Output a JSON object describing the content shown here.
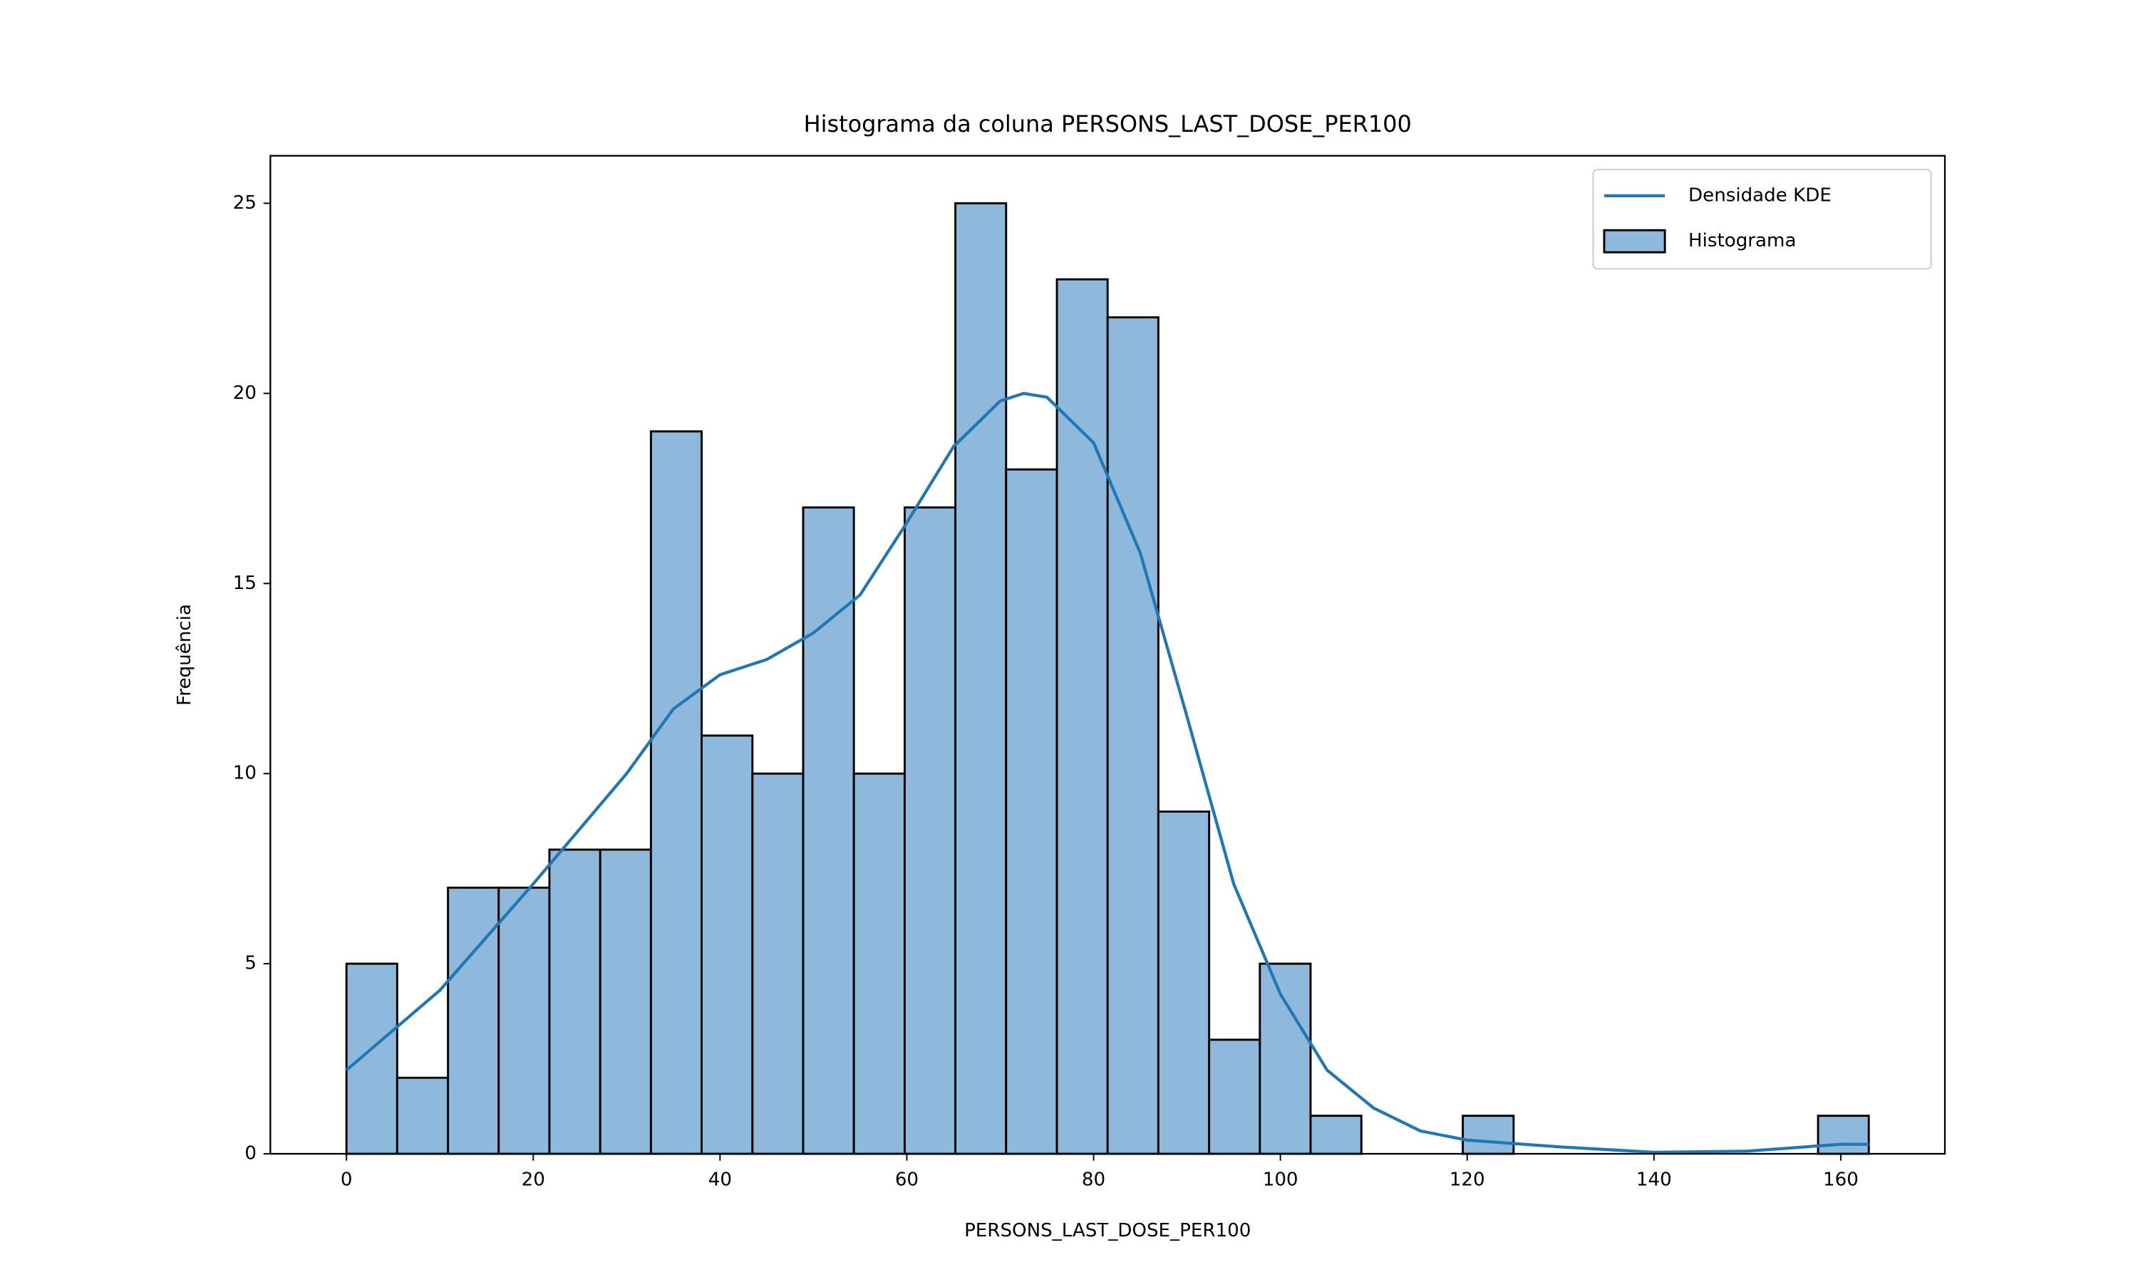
{
  "chart_data": {
    "type": "histogram",
    "title": "Histograma da coluna PERSONS_LAST_DOSE_PER100",
    "x_label": "PERSONS_LAST_DOSE_PER100",
    "y_label": "Frequência",
    "hist_name": "Histograma",
    "hist_color": "#8fb9dc",
    "edge_color": "#000000",
    "bins": [
      0,
      5.43,
      10.87,
      16.3,
      21.73,
      27.17,
      32.6,
      38.03,
      43.47,
      48.9,
      54.33,
      59.77,
      65.2,
      70.63,
      76.07,
      81.5,
      86.93,
      92.37,
      97.8,
      103.23,
      108.67,
      114.1,
      119.53,
      124.97,
      130.4,
      135.83,
      141.27,
      146.7,
      152.13,
      157.57,
      163
    ],
    "counts": [
      5,
      2,
      7,
      7,
      8,
      8,
      19,
      11,
      10,
      17,
      10,
      17,
      25,
      18,
      23,
      22,
      9,
      3,
      5,
      1,
      0,
      0,
      1,
      0,
      0,
      0,
      0,
      0,
      0,
      1
    ],
    "kde": {
      "name": "Densidade KDE",
      "color": "#1f77b4",
      "x": [
        0,
        10,
        20,
        30,
        35,
        40,
        45,
        50,
        55,
        60,
        65,
        70,
        72.5,
        75,
        80,
        85,
        90,
        95,
        100,
        105,
        110,
        115,
        120,
        130,
        140,
        150,
        160,
        163
      ],
      "values": [
        2.2,
        4.3,
        7.1,
        10.0,
        11.7,
        12.6,
        13.0,
        13.7,
        14.7,
        16.6,
        18.6,
        19.8,
        20.0,
        19.9,
        18.7,
        15.8,
        11.5,
        7.1,
        4.2,
        2.2,
        1.2,
        0.6,
        0.36,
        0.18,
        0.04,
        0.07,
        0.25,
        0.25
      ]
    },
    "xlim": [
      -8.15,
      171.15
    ],
    "ylim": [
      0,
      26.25
    ],
    "xticks": [
      0,
      20,
      40,
      60,
      80,
      100,
      120,
      140,
      160
    ],
    "yticks": [
      0,
      5,
      10,
      15,
      20,
      25
    ],
    "legend": "upper right"
  }
}
